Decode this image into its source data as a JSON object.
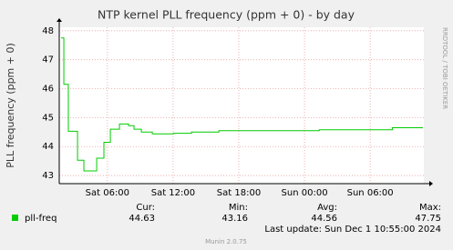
{
  "chart_data": {
    "type": "line",
    "title": "NTP kernel PLL frequency (ppm + 0) - by day",
    "y_label": "PLL frequency (ppm + 0)",
    "watermark": "RRDTOOL / TOBI OETIKER",
    "footer": "Munin 2.0.75",
    "x": [
      1.77,
      2.02,
      2.43,
      3.27,
      3.85,
      5.02,
      5.68,
      6.27,
      7.1,
      7.93,
      8.43,
      9.1,
      10.1,
      12.02,
      13.68,
      16.18,
      25.35,
      32.02,
      34.77
    ],
    "series": [
      {
        "name": "pll-freq",
        "color": "#00cc00",
        "values": [
          47.75,
          46.15,
          44.53,
          43.53,
          43.16,
          43.6,
          44.15,
          44.6,
          44.78,
          44.72,
          44.6,
          44.5,
          44.44,
          44.46,
          44.5,
          44.55,
          44.58,
          44.65,
          44.63
        ]
      }
    ],
    "xlim": [
      1.6,
      34.9
    ],
    "xticks": [
      {
        "value": 6,
        "label": "Sat 06:00"
      },
      {
        "value": 12,
        "label": "Sat 12:00"
      },
      {
        "value": 18,
        "label": "Sat 18:00"
      },
      {
        "value": 24,
        "label": "Sun 00:00"
      },
      {
        "value": 30,
        "label": "Sun 06:00"
      }
    ],
    "ylim": [
      42.72,
      48.12
    ],
    "yticks": [
      43,
      44,
      45,
      46,
      47,
      48
    ],
    "grid": true,
    "stats": {
      "headers": [
        "Cur:",
        "Min:",
        "Avg:",
        "Max:"
      ],
      "values": [
        44.63,
        43.16,
        44.56,
        47.75
      ]
    },
    "last_update": "Last update: Sun Dec  1 10:55:00 2024"
  }
}
